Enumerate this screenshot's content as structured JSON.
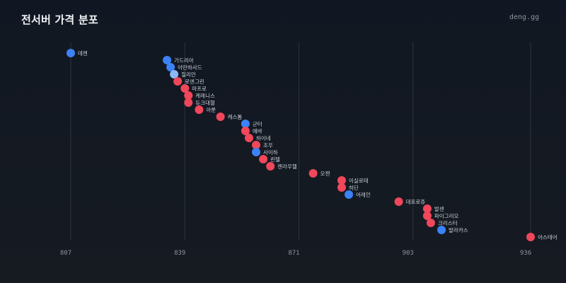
{
  "header": {
    "title": "전서버 가격 분포",
    "brand": "deng.gg"
  },
  "colors": {
    "red": "#f0475a",
    "blue": "#3b82f6",
    "light_blue": "#8ab8f8",
    "grid": "#2d333b"
  },
  "chart_data": {
    "type": "scatter",
    "title": "전서버 가격 분포",
    "xlabel": "",
    "ylabel": "",
    "xlim": [
      806,
      940
    ],
    "x_ticks": [
      "807",
      "839",
      "871",
      "903",
      "936"
    ],
    "x_tick_values": [
      807,
      839,
      871,
      903,
      936
    ],
    "grid": "vertical",
    "points": [
      {
        "label": "데켄",
        "x": 807,
        "color": "blue"
      },
      {
        "label": "가드리아",
        "x": 834,
        "color": "blue"
      },
      {
        "label": "아만하사드",
        "x": 835,
        "color": "blue"
      },
      {
        "label": "칠리안",
        "x": 836,
        "color": "light_blue"
      },
      {
        "label": "로엔그린",
        "x": 837,
        "color": "red"
      },
      {
        "label": "마프로",
        "x": 839,
        "color": "red"
      },
      {
        "label": "케레니스",
        "x": 840,
        "color": "red"
      },
      {
        "label": "듀크대혈",
        "x": 840,
        "color": "red"
      },
      {
        "label": "아룬",
        "x": 843,
        "color": "red"
      },
      {
        "label": "캐스톰",
        "x": 849,
        "color": "red"
      },
      {
        "label": "군터",
        "x": 856,
        "color": "blue"
      },
      {
        "label": "에바",
        "x": 856,
        "color": "red"
      },
      {
        "label": "하이네",
        "x": 857,
        "color": "red"
      },
      {
        "label": "조우",
        "x": 859,
        "color": "red"
      },
      {
        "label": "사이하",
        "x": 859,
        "color": "blue"
      },
      {
        "label": "린텔",
        "x": 861,
        "color": "red"
      },
      {
        "label": "켄라우헬",
        "x": 863,
        "color": "red"
      },
      {
        "label": "오젠",
        "x": 875,
        "color": "red"
      },
      {
        "label": "이실로테",
        "x": 883,
        "color": "red"
      },
      {
        "label": "하딘",
        "x": 883,
        "color": "red"
      },
      {
        "label": "어레인",
        "x": 885,
        "color": "blue"
      },
      {
        "label": "데포로쥬",
        "x": 899,
        "color": "red"
      },
      {
        "label": "발센",
        "x": 907,
        "color": "red"
      },
      {
        "label": "파이그리오",
        "x": 907,
        "color": "red"
      },
      {
        "label": "크리스터",
        "x": 908,
        "color": "red"
      },
      {
        "label": "발라카스",
        "x": 911,
        "color": "blue"
      },
      {
        "label": "아스테어",
        "x": 936,
        "color": "red"
      }
    ]
  }
}
